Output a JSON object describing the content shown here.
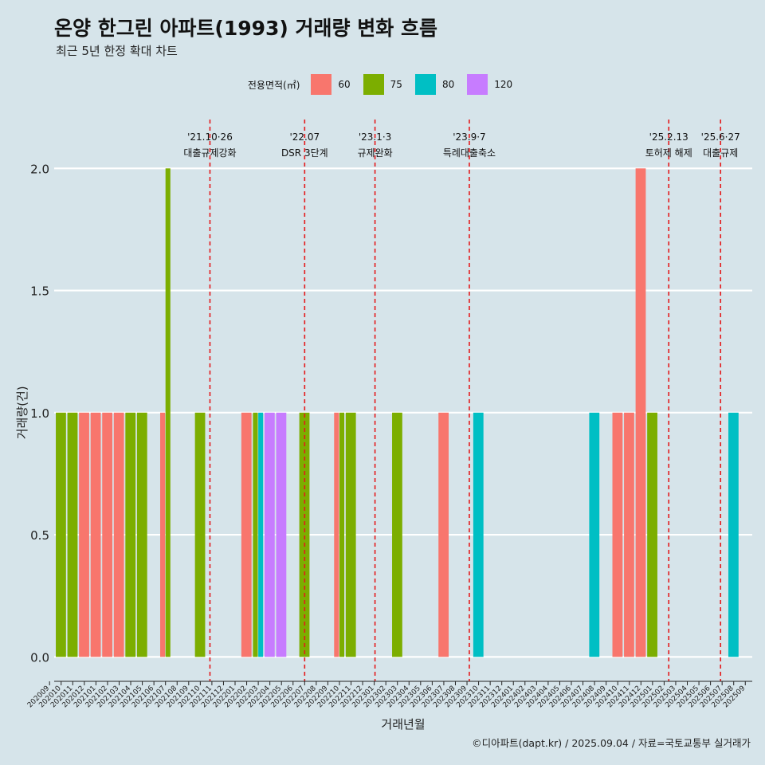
{
  "title": "온양 한그린 아파트(1993) 거래량 변화 흐름",
  "subtitle": "최근 5년 한정 확대 차트",
  "caption": "©디아파트(dapt.kr) / 2025.09.04 / 자료=국토교통부 실거래가",
  "legend": {
    "title": "전용면적(㎡)",
    "items": [
      {
        "label": "60",
        "color": "#f8766d"
      },
      {
        "label": "75",
        "color": "#7cae00"
      },
      {
        "label": "80",
        "color": "#00bfc4"
      },
      {
        "label": "120",
        "color": "#c77cff"
      }
    ]
  },
  "chart_data": {
    "type": "bar",
    "xlabel": "거래년월",
    "ylabel": "거래량(건)",
    "ylim": [
      0,
      2
    ],
    "yticks": [
      "0.0",
      "0.5",
      "1.0",
      "1.5",
      "2.0"
    ],
    "grid": true,
    "legend_position": "top",
    "categories": [
      "202009",
      "202010",
      "202011",
      "202012",
      "202101",
      "202102",
      "202103",
      "202104",
      "202105",
      "202106",
      "202107",
      "202108",
      "202109",
      "202110",
      "202111",
      "202112",
      "202201",
      "202202",
      "202203",
      "202204",
      "202205",
      "202206",
      "202207",
      "202208",
      "202209",
      "202210",
      "202211",
      "202212",
      "202301",
      "202302",
      "202303",
      "202304",
      "202305",
      "202306",
      "202307",
      "202308",
      "202309",
      "202310",
      "202311",
      "202312",
      "202401",
      "202402",
      "202403",
      "202404",
      "202405",
      "202406",
      "202407",
      "202408",
      "202409",
      "202410",
      "202411",
      "202412",
      "202501",
      "202502",
      "202503",
      "202504",
      "202505",
      "202506",
      "202507",
      "202508",
      "202509"
    ],
    "series": [
      {
        "name": "60",
        "values": [
          0,
          0,
          0,
          1,
          1,
          1,
          1,
          0,
          0,
          0,
          1,
          0,
          0,
          0,
          0,
          0,
          0,
          1,
          0,
          0,
          0,
          0,
          0,
          0,
          0,
          1,
          0,
          0,
          0,
          0,
          0,
          0,
          0,
          0,
          1,
          0,
          0,
          0,
          0,
          0,
          0,
          0,
          0,
          0,
          0,
          0,
          0,
          0,
          0,
          1,
          1,
          2,
          0,
          0,
          0,
          0,
          0,
          0,
          0,
          0,
          0
        ]
      },
      {
        "name": "75",
        "values": [
          0,
          1,
          1,
          0,
          0,
          0,
          0,
          1,
          1,
          0,
          2,
          0,
          0,
          1,
          0,
          0,
          0,
          0,
          1,
          0,
          0,
          0,
          1,
          0,
          0,
          1,
          1,
          0,
          0,
          0,
          1,
          0,
          0,
          0,
          0,
          0,
          0,
          0,
          0,
          0,
          0,
          0,
          0,
          0,
          0,
          0,
          0,
          0,
          0,
          0,
          0,
          0,
          1,
          0,
          0,
          0,
          0,
          0,
          0,
          0,
          0
        ]
      },
      {
        "name": "80",
        "values": [
          0,
          0,
          0,
          0,
          0,
          0,
          0,
          0,
          0,
          0,
          0,
          0,
          0,
          0,
          0,
          0,
          0,
          0,
          1,
          0,
          0,
          0,
          0,
          0,
          0,
          0,
          0,
          0,
          0,
          0,
          0,
          0,
          0,
          0,
          0,
          0,
          0,
          1,
          0,
          0,
          0,
          0,
          0,
          0,
          0,
          0,
          0,
          1,
          0,
          0,
          0,
          0,
          0,
          0,
          0,
          0,
          0,
          0,
          0,
          1,
          0
        ]
      },
      {
        "name": "120",
        "values": [
          0,
          0,
          0,
          0,
          0,
          0,
          0,
          0,
          0,
          0,
          0,
          0,
          0,
          0,
          0,
          0,
          0,
          0,
          0,
          1,
          1,
          0,
          0,
          0,
          0,
          0,
          0,
          0,
          0,
          0,
          0,
          0,
          0,
          0,
          0,
          0,
          0,
          0,
          0,
          0,
          0,
          0,
          0,
          0,
          0,
          0,
          0,
          0,
          0,
          0,
          0,
          0,
          0,
          0,
          0,
          0,
          0,
          0,
          0,
          0,
          0
        ]
      }
    ],
    "annotations": [
      {
        "date": "2021-10-26",
        "label1": "'21.10·26",
        "label2": "대출규제강화"
      },
      {
        "date": "2022-07-01",
        "label1": "'22.07",
        "label2": "DSR 3단계"
      },
      {
        "date": "2023-01-03",
        "label1": "'23.1·3",
        "label2": "규제완화"
      },
      {
        "date": "2023-09-07",
        "label1": "'23.9·7",
        "label2": "특례대출축소"
      },
      {
        "date": "2025-02-13",
        "label1": "'25.2.13",
        "label2": "토허제 해제"
      },
      {
        "date": "2025-06-27",
        "label1": "'25.6·27",
        "label2": "대출규제"
      }
    ]
  }
}
